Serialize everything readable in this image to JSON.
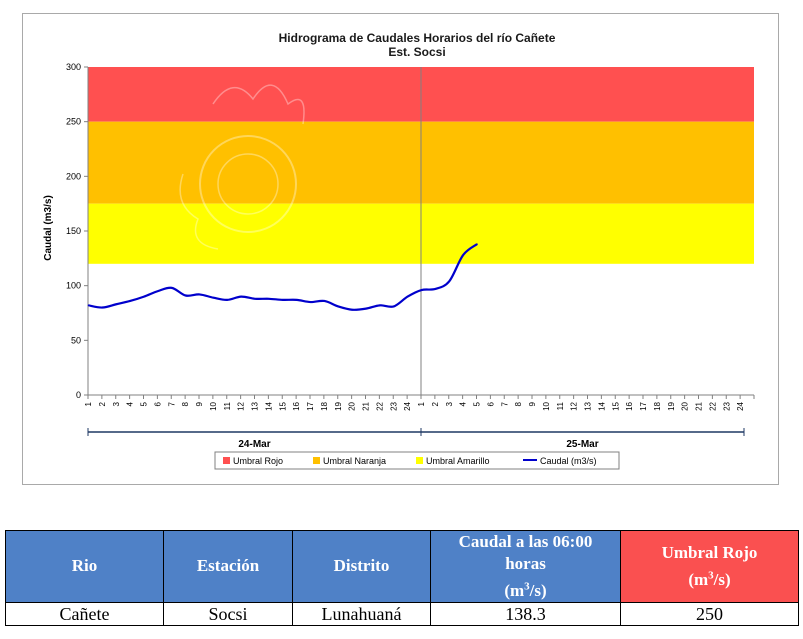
{
  "chart_data": {
    "type": "line",
    "title": "Hidrograma de Caudales Horarios del río Cañete",
    "subtitle": "Est. Socsi",
    "ylabel": "Caudal  (m3/s)",
    "ylim": [
      0,
      300
    ],
    "yticks": [
      0,
      50,
      100,
      150,
      200,
      250,
      300
    ],
    "hour_labels": [
      "1",
      "2",
      "3",
      "4",
      "5",
      "6",
      "7",
      "8",
      "9",
      "10",
      "11",
      "12",
      "13",
      "14",
      "15",
      "16",
      "17",
      "18",
      "19",
      "20",
      "21",
      "22",
      "23",
      "24",
      "1",
      "2",
      "3",
      "4",
      "5",
      "6",
      "7",
      "8",
      "9",
      "10",
      "11",
      "12",
      "13",
      "14",
      "15",
      "16",
      "17",
      "18",
      "19",
      "20",
      "21",
      "22",
      "23",
      "24"
    ],
    "day_labels": [
      "24-Mar",
      "25-Mar"
    ],
    "bands": [
      {
        "name": "Umbral Rojo",
        "from": 250,
        "to": 300,
        "color": "#ff5050"
      },
      {
        "name": "Umbral Naranja",
        "from": 175,
        "to": 250,
        "color": "#ffc000"
      },
      {
        "name": "Umbral Amarillo",
        "from": 120,
        "to": 175,
        "color": "#ffff00"
      }
    ],
    "series": [
      {
        "name": "Caudal (m3/s)",
        "color": "#0000cc",
        "values": [
          82,
          80,
          83,
          86,
          90,
          95,
          98,
          91,
          92,
          89,
          87,
          90,
          88,
          88,
          87,
          87,
          85,
          86,
          81,
          78,
          79,
          82,
          81,
          90,
          96,
          97,
          104,
          128,
          138
        ]
      }
    ],
    "legend": [
      {
        "label": "Umbral Rojo",
        "color": "#ff5050",
        "kind": "box"
      },
      {
        "label": "Umbral Naranja",
        "color": "#ffc000",
        "kind": "box"
      },
      {
        "label": "Umbral Amarillo",
        "color": "#ffff00",
        "kind": "box"
      },
      {
        "label": "Caudal (m3/s)",
        "color": "#0000cc",
        "kind": "line"
      }
    ],
    "legend_position": "bottom",
    "grid": false
  },
  "table": {
    "headers": [
      "Rio",
      "Estación",
      "Distrito",
      "Caudal a las 06:00 horas",
      "Umbral Rojo"
    ],
    "header_unit_base": "(m",
    "header_unit_exp": "3",
    "header_unit_tail": "/s)",
    "row": [
      "Cañete",
      "Socsi",
      "Lunahuaná",
      "138.3",
      "250"
    ]
  }
}
